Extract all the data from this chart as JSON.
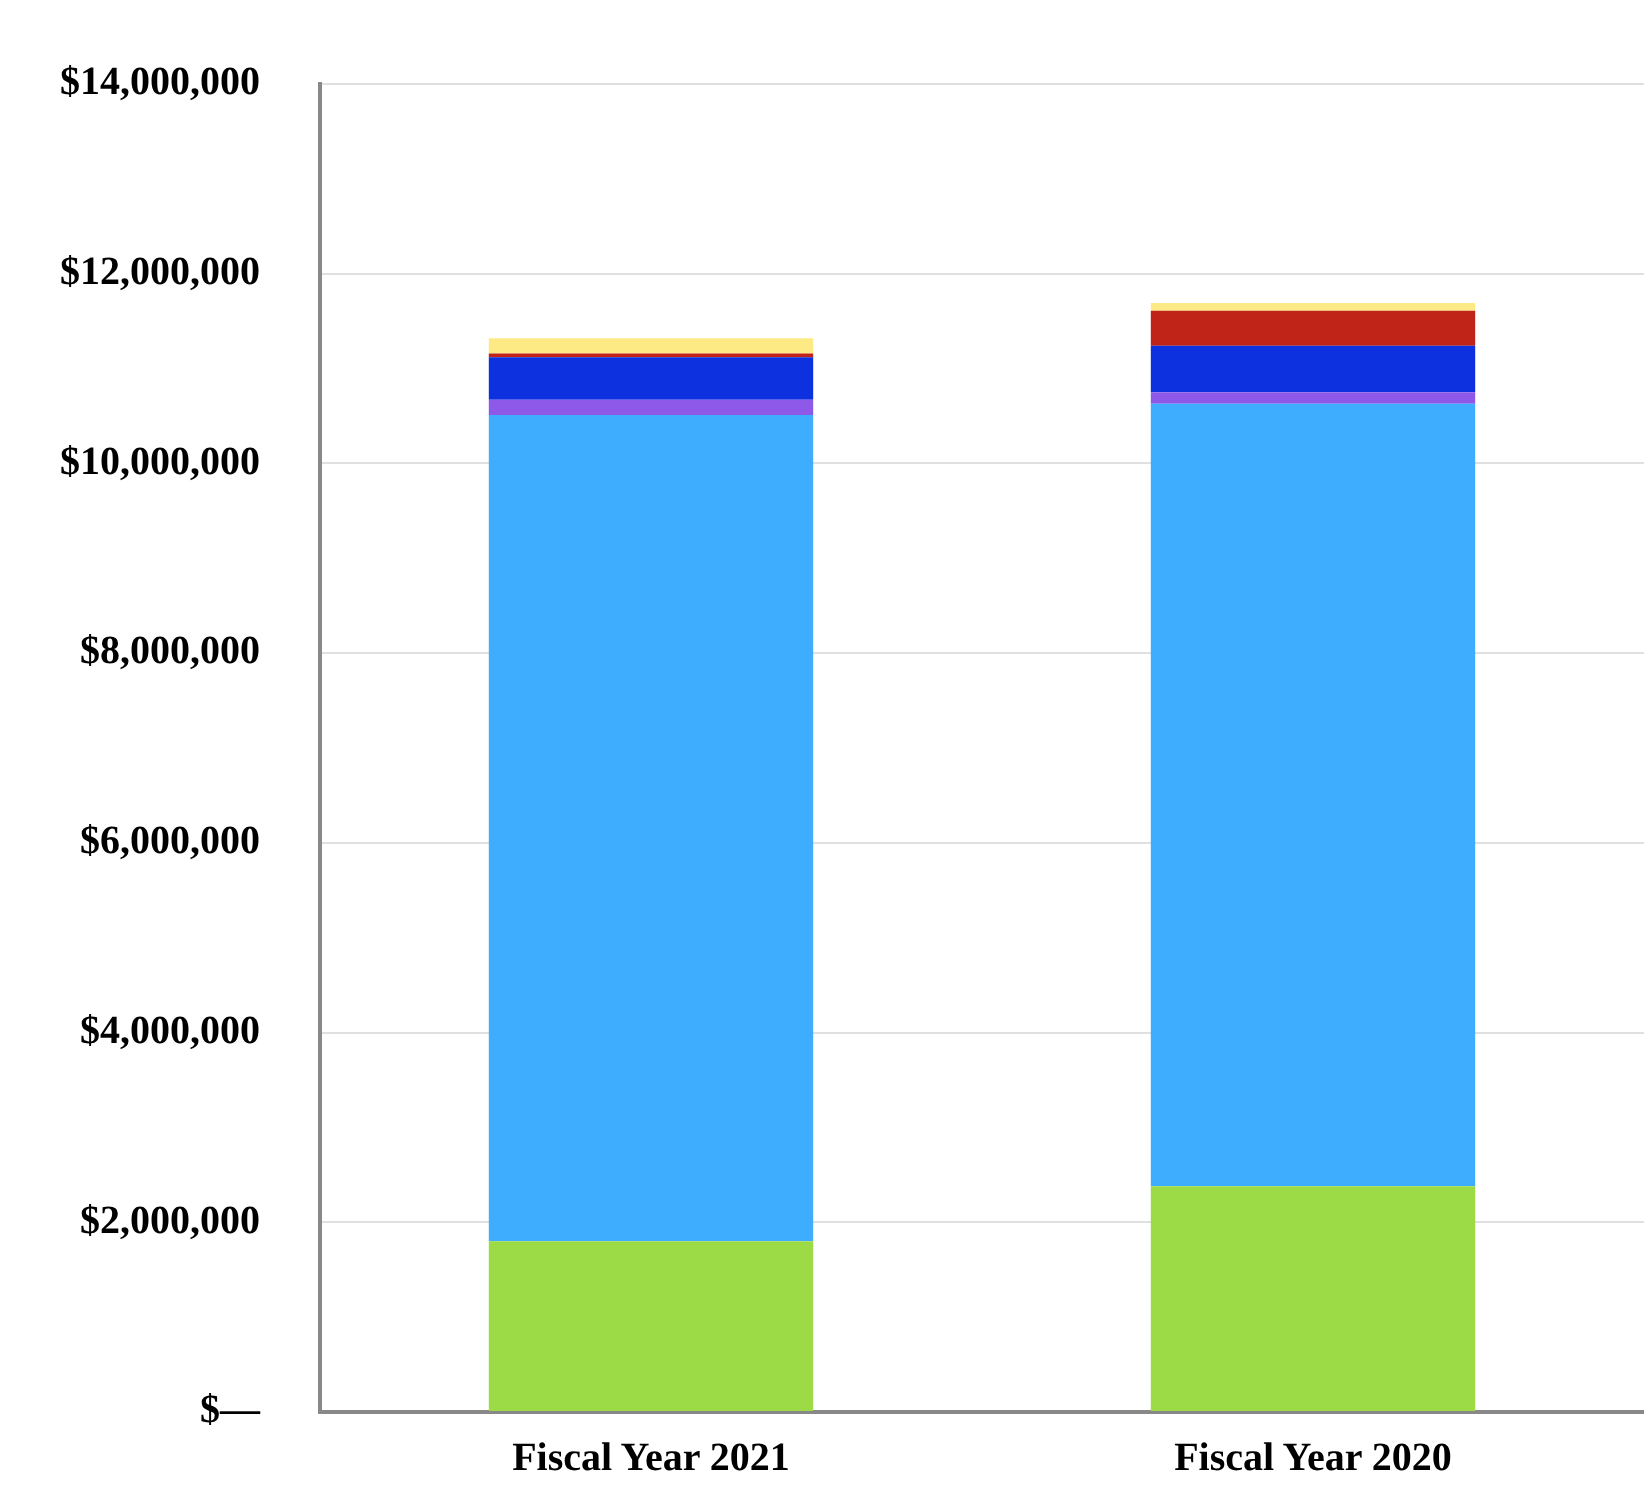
{
  "chart_data": {
    "type": "bar",
    "stacked": true,
    "categories": [
      "Fiscal Year 2021",
      "Fiscal Year 2020"
    ],
    "series": [
      {
        "color": "#9cdb46",
        "values": [
          1800000,
          2380000
        ]
      },
      {
        "color": "#3fadfe",
        "values": [
          8710000,
          8250000
        ]
      },
      {
        "color": "#8e58e8",
        "values": [
          160000,
          120000
        ]
      },
      {
        "color": "#0e31e0",
        "values": [
          450000,
          490000
        ]
      },
      {
        "color": "#c02317",
        "values": [
          40000,
          370000
        ]
      },
      {
        "color": "#fdea85",
        "values": [
          160000,
          80000
        ]
      }
    ],
    "ylim": [
      0,
      14000000
    ],
    "yticks": [
      {
        "value": 0,
        "label": "$—"
      },
      {
        "value": 2000000,
        "label": "$2,000,000"
      },
      {
        "value": 4000000,
        "label": "$4,000,000"
      },
      {
        "value": 6000000,
        "label": "$6,000,000"
      },
      {
        "value": 8000000,
        "label": "$8,000,000"
      },
      {
        "value": 10000000,
        "label": "$10,000,000"
      },
      {
        "value": 12000000,
        "label": "$12,000,000"
      },
      {
        "value": 14000000,
        "label": "$14,000,000"
      }
    ],
    "grid": "y",
    "legend": false
  }
}
